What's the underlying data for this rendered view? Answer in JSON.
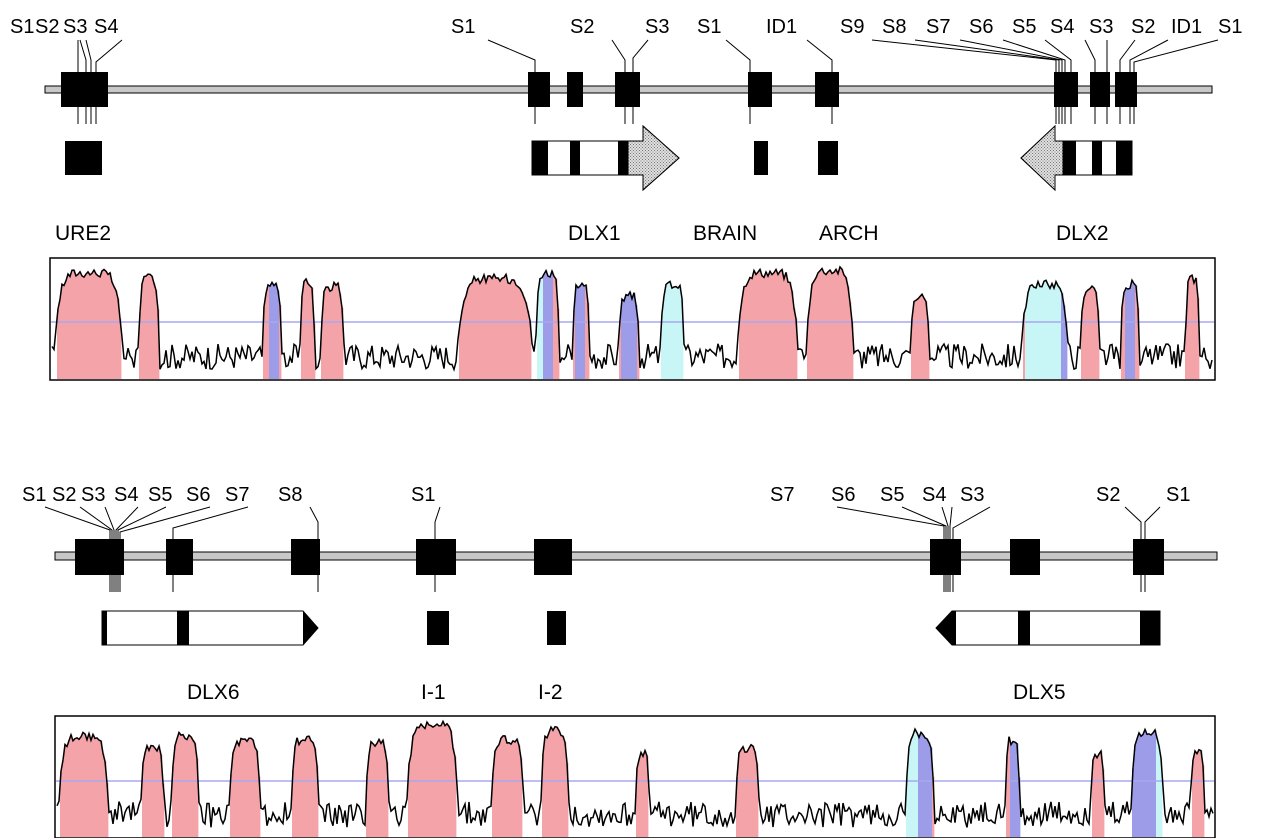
{
  "panels": [
    {
      "id": "top",
      "site_labels": [
        "S1",
        "S2",
        "S3",
        "S4",
        "S1",
        "S2",
        "S3",
        "S1",
        "ID1",
        "S9",
        "S8",
        "S7",
        "S6",
        "S5",
        "S4",
        "S3",
        "S2",
        "ID1",
        "S1"
      ],
      "feature_labels": [
        "URE2",
        "DLX1",
        "BRAIN",
        "ARCH",
        "DLX2"
      ]
    },
    {
      "id": "bottom",
      "site_labels": [
        "S1",
        "S2",
        "S3",
        "S4",
        "S5",
        "S6",
        "S7",
        "S8",
        "S1",
        "S7",
        "S6",
        "S5",
        "S4",
        "S3",
        "S2",
        "S1"
      ],
      "feature_labels": [
        "DLX6",
        "I-1",
        "I-2",
        "DLX5"
      ]
    }
  ],
  "colors": {
    "conserved_noncoding": "#f4a3a8",
    "exon": "#9c9ce8",
    "utr": "#c8f5f5",
    "threshold_line": "#a8a8f0",
    "backbone": "#c8c8c8",
    "stippled_arrow_fill": "#d8d8d8"
  }
}
